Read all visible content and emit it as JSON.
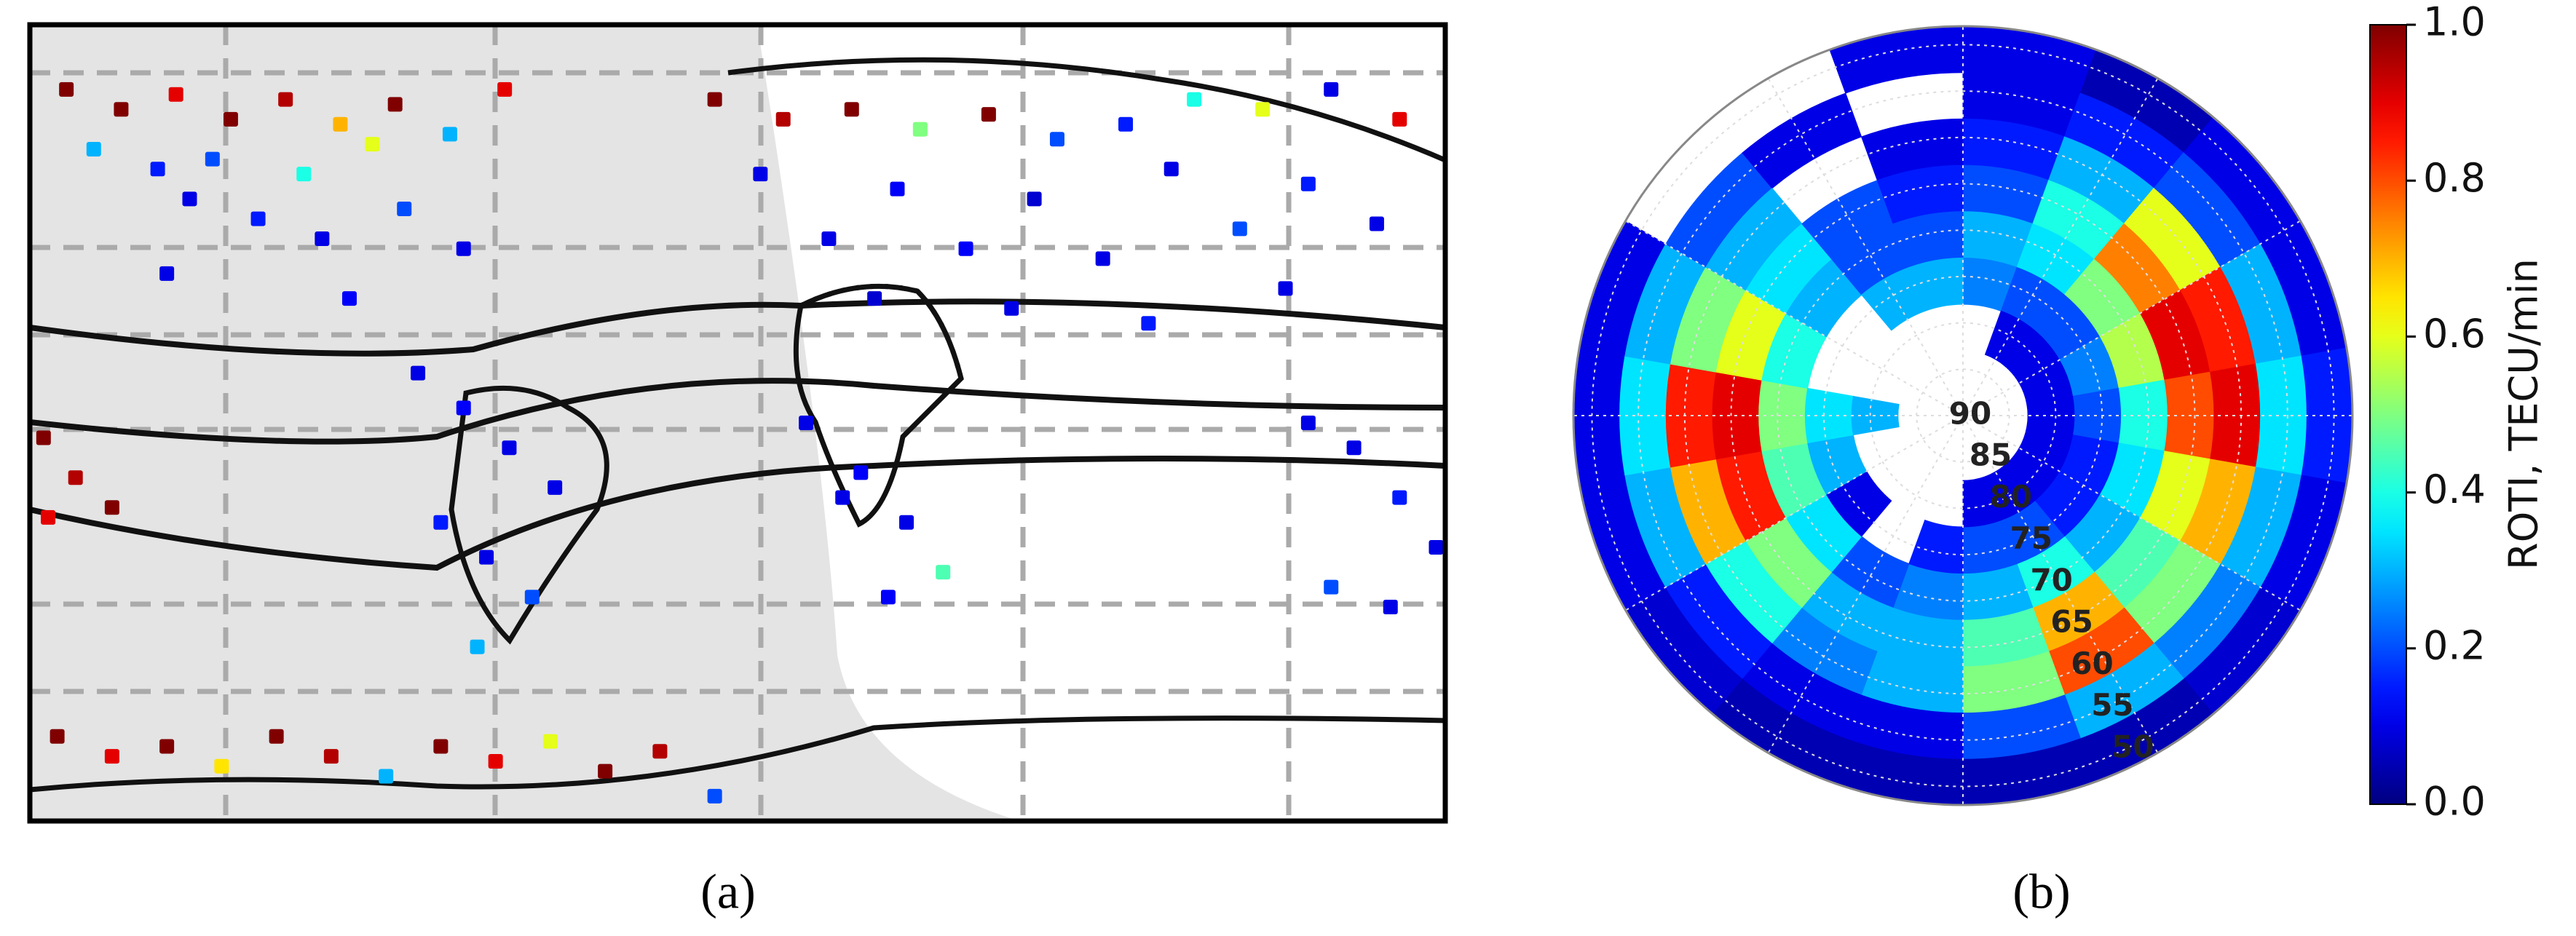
{
  "chart_data": [
    {
      "type": "scatter",
      "panel_label": "(a)",
      "xlim": [
        -130,
        180
      ],
      "ylim": [
        -75,
        85
      ],
      "x": [
        -122,
        -110,
        -98,
        -86,
        -74,
        -62,
        -50,
        -38,
        -26,
        -116,
        -102,
        -90,
        -70,
        -55,
        -95,
        -80,
        -66,
        -48,
        -35,
        -100,
        -60,
        20,
        35,
        50,
        65,
        80,
        95,
        110,
        125,
        140,
        155,
        170,
        30,
        60,
        90,
        120,
        150,
        45,
        75,
        105,
        135,
        165,
        55,
        85,
        115,
        145,
        -45,
        -35,
        -25,
        -15,
        -40,
        -30,
        -20,
        -32,
        40,
        52,
        62,
        70,
        48,
        58,
        -127,
        -120,
        -112,
        -126,
        150,
        160,
        170,
        178,
        155,
        168,
        -124,
        -112,
        -100,
        -88,
        -76,
        -64,
        -52,
        -40,
        -28,
        -16,
        -4,
        8,
        20
      ],
      "y": [
        72,
        68,
        71,
        66,
        70,
        65,
        69,
        63,
        72,
        60,
        56,
        58,
        55,
        61,
        50,
        46,
        42,
        48,
        40,
        35,
        30,
        70,
        66,
        68,
        64,
        67,
        62,
        65,
        70,
        68,
        72,
        66,
        55,
        52,
        50,
        56,
        53,
        42,
        40,
        38,
        44,
        45,
        30,
        28,
        25,
        32,
        15,
        8,
        0,
        -8,
        -15,
        -22,
        -30,
        -40,
        5,
        -5,
        -15,
        -25,
        -10,
        -30,
        2,
        -6,
        -12,
        -14,
        5,
        0,
        -10,
        -20,
        -28,
        -32,
        -58,
        -62,
        -60,
        -64,
        -58,
        -62,
        -66,
        -60,
        -63,
        -59,
        -65,
        -61,
        -70
      ],
      "values": [
        1,
        1,
        0.9,
        1,
        0.95,
        0.7,
        1,
        0.3,
        0.9,
        0.3,
        0.15,
        0.2,
        0.4,
        0.6,
        0.1,
        0.15,
        0.1,
        0.2,
        0.1,
        0.1,
        0.12,
        1,
        0.95,
        1,
        0.5,
        1,
        0.2,
        0.15,
        0.4,
        0.6,
        0.1,
        0.9,
        0.1,
        0.12,
        0.08,
        0.1,
        0.15,
        0.1,
        0.12,
        0.1,
        0.2,
        0.1,
        0.08,
        0.1,
        0.15,
        0.1,
        0.1,
        0.12,
        0.1,
        0.1,
        0.15,
        0.1,
        0.2,
        0.3,
        0.1,
        0.12,
        0.1,
        0.45,
        0.1,
        0.12,
        1,
        0.95,
        1,
        0.9,
        0.1,
        0.1,
        0.15,
        0.1,
        0.2,
        0.1,
        1,
        0.9,
        1,
        0.65,
        1,
        0.95,
        0.3,
        1,
        0.9,
        0.6,
        1,
        0.95,
        0.2
      ]
    },
    {
      "type": "polar-heatmap",
      "panel_label": "(b)",
      "rlim": [
        90,
        48
      ],
      "rticks": [
        90,
        85,
        80,
        75,
        70,
        65,
        60,
        55,
        50
      ],
      "ring_edges": [
        48,
        53,
        58,
        63,
        68,
        73,
        78,
        83
      ],
      "sector_edges": [
        0,
        20,
        40,
        60,
        80,
        100,
        120,
        140,
        160,
        180,
        200,
        220,
        240,
        260,
        280,
        300,
        320,
        340,
        360
      ],
      "values": [
        [
          0.1,
          0.05,
          0.1,
          0.1,
          0.15,
          0.1,
          0.08,
          0.05,
          0.05,
          0.05,
          0.05,
          0.08,
          0.1,
          0.1,
          0.1,
          null,
          null,
          0.1
        ],
        [
          0.1,
          0.15,
          0.2,
          0.3,
          0.35,
          0.3,
          0.25,
          0.3,
          0.2,
          0.1,
          0.1,
          0.15,
          0.3,
          0.35,
          0.3,
          0.2,
          0.1,
          null
        ],
        [
          0.15,
          0.3,
          0.6,
          0.85,
          0.9,
          0.7,
          0.5,
          0.8,
          0.5,
          0.3,
          0.25,
          0.4,
          0.7,
          0.85,
          0.5,
          0.3,
          null,
          0.1
        ],
        [
          0.2,
          0.4,
          0.75,
          0.9,
          0.8,
          0.6,
          0.45,
          0.7,
          0.45,
          0.3,
          0.3,
          0.5,
          0.85,
          0.9,
          0.6,
          0.35,
          0.2,
          0.15
        ],
        [
          0.3,
          0.35,
          0.5,
          0.55,
          0.4,
          0.35,
          0.3,
          0.4,
          0.3,
          0.25,
          0.2,
          0.35,
          0.45,
          0.5,
          0.4,
          0.3,
          0.2,
          0.2
        ],
        [
          0.25,
          0.2,
          0.2,
          0.25,
          0.2,
          0.15,
          0.15,
          0.2,
          0.2,
          0.15,
          null,
          0.1,
          0.3,
          0.35,
          null,
          null,
          0.3,
          0.3
        ],
        [
          null,
          0.1,
          0.1,
          0.1,
          0.1,
          0.1,
          0.1,
          0.1,
          0.1,
          null,
          null,
          null,
          null,
          0.3,
          null,
          null,
          null,
          null
        ]
      ],
      "colorbar": {
        "label": "ROTI, TECU/min",
        "lim": [
          0,
          1
        ],
        "ticks": [
          {
            "value": 0,
            "label": "0.0"
          },
          0.2,
          0.4,
          0.6,
          0.8,
          {
            "value": 1,
            "label": "1.0"
          }
        ]
      }
    }
  ]
}
